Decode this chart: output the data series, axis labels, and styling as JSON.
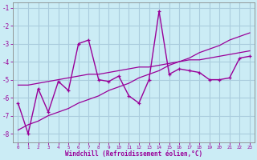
{
  "xlabel": "Windchill (Refroidissement éolien,°C)",
  "x_values": [
    0,
    1,
    2,
    3,
    4,
    5,
    6,
    7,
    8,
    9,
    10,
    11,
    12,
    13,
    14,
    15,
    16,
    17,
    18,
    19,
    20,
    21,
    22,
    23
  ],
  "main_line": [
    -6.3,
    -8.0,
    -5.5,
    -6.8,
    -5.1,
    -5.6,
    -3.0,
    -2.8,
    -5.0,
    -5.1,
    -4.8,
    -5.9,
    -6.3,
    -5.0,
    -1.2,
    -4.7,
    -4.4,
    -4.5,
    -4.6,
    -5.0,
    -5.0,
    -4.9,
    -3.8,
    -3.7
  ],
  "line_upper": [
    -5.3,
    -5.3,
    -5.2,
    -5.1,
    -5.0,
    -4.9,
    -4.8,
    -4.7,
    -4.7,
    -4.6,
    -4.5,
    -4.4,
    -4.3,
    -4.3,
    -4.2,
    -4.1,
    -4.0,
    -3.9,
    -3.9,
    -3.8,
    -3.7,
    -3.6,
    -3.5,
    -3.4
  ],
  "line_lower": [
    -7.8,
    -7.5,
    -7.3,
    -7.0,
    -6.8,
    -6.6,
    -6.3,
    -6.1,
    -5.9,
    -5.6,
    -5.4,
    -5.2,
    -4.9,
    -4.7,
    -4.5,
    -4.2,
    -4.0,
    -3.8,
    -3.5,
    -3.3,
    -3.1,
    -2.8,
    -2.6,
    -2.4
  ],
  "line_color": "#990099",
  "background_color": "#cbecf5",
  "grid_color": "#b0d8e8",
  "ylim": [
    -8.5,
    -0.7
  ],
  "xlim": [
    -0.5,
    23.5
  ],
  "yticks": [
    -1,
    -2,
    -3,
    -4,
    -5,
    -6,
    -7,
    -8
  ],
  "xticks": [
    0,
    1,
    2,
    3,
    4,
    5,
    6,
    7,
    8,
    9,
    10,
    11,
    12,
    13,
    14,
    15,
    16,
    17,
    18,
    19,
    20,
    21,
    22,
    23
  ]
}
